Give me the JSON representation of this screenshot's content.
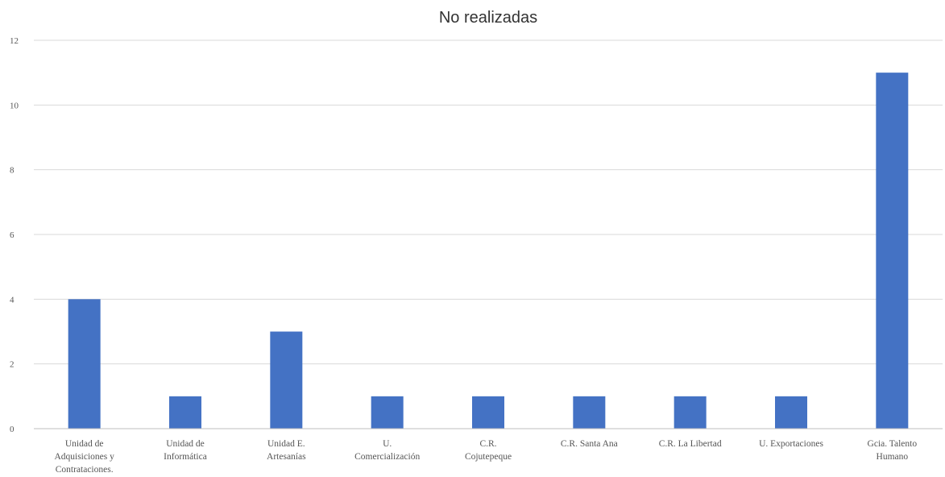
{
  "chart_data": {
    "type": "bar",
    "title": "No realizadas",
    "xlabel": "",
    "ylabel": "",
    "ylim": [
      0,
      12
    ],
    "yticks": [
      "0",
      "2",
      "4",
      "6",
      "8",
      "10",
      "12"
    ],
    "grid": true,
    "legend": "none",
    "bar_color": "#4472C4",
    "categories": [
      [
        "Unidad de",
        "Adquisiciones y",
        "Contrataciones."
      ],
      [
        "Unidad de",
        "Informática"
      ],
      [
        "Unidad E.",
        "Artesanías"
      ],
      [
        "U.",
        "Comercialización"
      ],
      [
        "C.R.",
        "Cojutepeque"
      ],
      [
        "C.R. Santa Ana"
      ],
      [
        "C.R. La Libertad"
      ],
      [
        "U. Exportaciones"
      ],
      [
        "Gcia. Talento",
        "Humano"
      ]
    ],
    "values": [
      4,
      1,
      3,
      1,
      1,
      1,
      1,
      1,
      11
    ]
  }
}
